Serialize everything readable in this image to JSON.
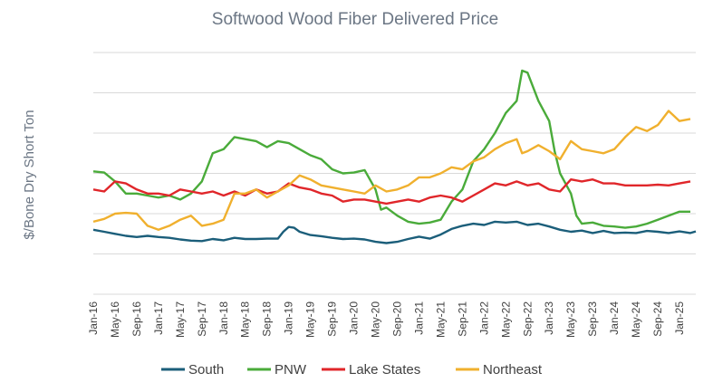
{
  "chart_data": {
    "type": "line",
    "title": "Softwood Wood Fiber Delivered Price",
    "ylabel": "$/Bone Dry Short Ton",
    "xlabel": "",
    "ylim": [
      0,
      6
    ],
    "grid": true,
    "y_tick_labels_shown": false,
    "legend_position": "bottom",
    "x_tick_labels": [
      "Jan-16",
      "May-16",
      "Sep-16",
      "Jan-17",
      "May-17",
      "Sep-17",
      "Jan-18",
      "May-18",
      "Sep-18",
      "Jan-19",
      "May-19",
      "Sep-19",
      "Jan-20",
      "May-20",
      "Sep-20",
      "Jan-21",
      "May-21",
      "Sep-21",
      "Jan-22",
      "May-22",
      "Sep-22",
      "Jan-23",
      "May-23",
      "Sep-23",
      "Jan-24",
      "May-24",
      "Sep-24",
      "Jan-25"
    ],
    "x_start": "2016-01",
    "x_end": "2025-03",
    "series": [
      {
        "name": "South",
        "color": "#1b5e7a",
        "values": [
          [
            0,
            1.6
          ],
          [
            2,
            1.55
          ],
          [
            4,
            1.5
          ],
          [
            6,
            1.45
          ],
          [
            8,
            1.42
          ],
          [
            10,
            1.45
          ],
          [
            12,
            1.42
          ],
          [
            14,
            1.4
          ],
          [
            16,
            1.36
          ],
          [
            18,
            1.33
          ],
          [
            20,
            1.32
          ],
          [
            22,
            1.37
          ],
          [
            24,
            1.34
          ],
          [
            26,
            1.4
          ],
          [
            28,
            1.37
          ],
          [
            30,
            1.37
          ],
          [
            32,
            1.38
          ],
          [
            34,
            1.38
          ],
          [
            35,
            1.55
          ],
          [
            36,
            1.67
          ],
          [
            37,
            1.65
          ],
          [
            38,
            1.55
          ],
          [
            40,
            1.47
          ],
          [
            42,
            1.44
          ],
          [
            44,
            1.4
          ],
          [
            46,
            1.37
          ],
          [
            48,
            1.38
          ],
          [
            50,
            1.36
          ],
          [
            52,
            1.3
          ],
          [
            54,
            1.27
          ],
          [
            56,
            1.3
          ],
          [
            58,
            1.37
          ],
          [
            60,
            1.43
          ],
          [
            62,
            1.38
          ],
          [
            64,
            1.48
          ],
          [
            66,
            1.62
          ],
          [
            68,
            1.7
          ],
          [
            70,
            1.75
          ],
          [
            72,
            1.72
          ],
          [
            74,
            1.8
          ],
          [
            76,
            1.78
          ],
          [
            78,
            1.8
          ],
          [
            80,
            1.72
          ],
          [
            82,
            1.75
          ],
          [
            84,
            1.68
          ],
          [
            86,
            1.6
          ],
          [
            88,
            1.55
          ],
          [
            90,
            1.58
          ],
          [
            92,
            1.52
          ],
          [
            94,
            1.57
          ],
          [
            96,
            1.52
          ],
          [
            98,
            1.53
          ],
          [
            100,
            1.52
          ],
          [
            102,
            1.57
          ],
          [
            104,
            1.55
          ],
          [
            106,
            1.52
          ],
          [
            108,
            1.56
          ],
          [
            110,
            1.52
          ],
          [
            111,
            1.56
          ]
        ]
      },
      {
        "name": "PNW",
        "color": "#4aab3a",
        "values": [
          [
            0,
            3.05
          ],
          [
            2,
            3.02
          ],
          [
            4,
            2.8
          ],
          [
            6,
            2.5
          ],
          [
            8,
            2.5
          ],
          [
            10,
            2.45
          ],
          [
            12,
            2.4
          ],
          [
            14,
            2.45
          ],
          [
            16,
            2.35
          ],
          [
            18,
            2.5
          ],
          [
            20,
            2.8
          ],
          [
            22,
            3.5
          ],
          [
            24,
            3.6
          ],
          [
            26,
            3.9
          ],
          [
            28,
            3.85
          ],
          [
            30,
            3.8
          ],
          [
            32,
            3.65
          ],
          [
            34,
            3.8
          ],
          [
            36,
            3.75
          ],
          [
            38,
            3.6
          ],
          [
            40,
            3.45
          ],
          [
            42,
            3.35
          ],
          [
            44,
            3.1
          ],
          [
            46,
            3.0
          ],
          [
            48,
            3.02
          ],
          [
            50,
            3.08
          ],
          [
            52,
            2.6
          ],
          [
            53,
            2.1
          ],
          [
            54,
            2.15
          ],
          [
            56,
            1.95
          ],
          [
            58,
            1.8
          ],
          [
            60,
            1.75
          ],
          [
            62,
            1.78
          ],
          [
            64,
            1.85
          ],
          [
            66,
            2.3
          ],
          [
            68,
            2.6
          ],
          [
            70,
            3.3
          ],
          [
            72,
            3.6
          ],
          [
            74,
            4.0
          ],
          [
            76,
            4.5
          ],
          [
            78,
            4.8
          ],
          [
            79,
            5.55
          ],
          [
            80,
            5.5
          ],
          [
            82,
            4.8
          ],
          [
            84,
            4.3
          ],
          [
            85,
            3.55
          ],
          [
            86,
            3.0
          ],
          [
            88,
            2.5
          ],
          [
            89,
            1.95
          ],
          [
            90,
            1.75
          ],
          [
            92,
            1.78
          ],
          [
            94,
            1.7
          ],
          [
            96,
            1.68
          ],
          [
            98,
            1.65
          ],
          [
            100,
            1.68
          ],
          [
            102,
            1.75
          ],
          [
            104,
            1.85
          ],
          [
            106,
            1.95
          ],
          [
            108,
            2.05
          ],
          [
            110,
            2.05
          ]
        ]
      },
      {
        "name": "Lake States",
        "color": "#e0262a",
        "values": [
          [
            0,
            2.6
          ],
          [
            2,
            2.55
          ],
          [
            4,
            2.8
          ],
          [
            6,
            2.75
          ],
          [
            8,
            2.6
          ],
          [
            10,
            2.5
          ],
          [
            12,
            2.5
          ],
          [
            14,
            2.45
          ],
          [
            16,
            2.6
          ],
          [
            18,
            2.55
          ],
          [
            20,
            2.5
          ],
          [
            22,
            2.55
          ],
          [
            24,
            2.45
          ],
          [
            26,
            2.55
          ],
          [
            28,
            2.45
          ],
          [
            30,
            2.6
          ],
          [
            32,
            2.5
          ],
          [
            34,
            2.55
          ],
          [
            36,
            2.75
          ],
          [
            38,
            2.65
          ],
          [
            40,
            2.6
          ],
          [
            42,
            2.5
          ],
          [
            44,
            2.45
          ],
          [
            46,
            2.3
          ],
          [
            48,
            2.35
          ],
          [
            50,
            2.35
          ],
          [
            52,
            2.3
          ],
          [
            54,
            2.25
          ],
          [
            56,
            2.3
          ],
          [
            58,
            2.35
          ],
          [
            60,
            2.3
          ],
          [
            62,
            2.4
          ],
          [
            64,
            2.45
          ],
          [
            66,
            2.4
          ],
          [
            68,
            2.3
          ],
          [
            70,
            2.45
          ],
          [
            72,
            2.6
          ],
          [
            74,
            2.75
          ],
          [
            76,
            2.7
          ],
          [
            78,
            2.8
          ],
          [
            80,
            2.7
          ],
          [
            82,
            2.75
          ],
          [
            84,
            2.6
          ],
          [
            86,
            2.55
          ],
          [
            88,
            2.85
          ],
          [
            90,
            2.8
          ],
          [
            92,
            2.85
          ],
          [
            94,
            2.75
          ],
          [
            96,
            2.75
          ],
          [
            98,
            2.7
          ],
          [
            100,
            2.7
          ],
          [
            102,
            2.7
          ],
          [
            104,
            2.72
          ],
          [
            106,
            2.7
          ],
          [
            108,
            2.75
          ],
          [
            110,
            2.8
          ]
        ]
      },
      {
        "name": "Northeast",
        "color": "#f0b02e",
        "values": [
          [
            0,
            1.8
          ],
          [
            2,
            1.87
          ],
          [
            4,
            2.0
          ],
          [
            6,
            2.02
          ],
          [
            8,
            2.0
          ],
          [
            10,
            1.7
          ],
          [
            12,
            1.6
          ],
          [
            14,
            1.7
          ],
          [
            16,
            1.85
          ],
          [
            18,
            1.95
          ],
          [
            20,
            1.7
          ],
          [
            22,
            1.75
          ],
          [
            24,
            1.85
          ],
          [
            26,
            2.5
          ],
          [
            28,
            2.5
          ],
          [
            30,
            2.6
          ],
          [
            32,
            2.4
          ],
          [
            34,
            2.55
          ],
          [
            36,
            2.7
          ],
          [
            38,
            2.95
          ],
          [
            40,
            2.85
          ],
          [
            42,
            2.7
          ],
          [
            44,
            2.65
          ],
          [
            46,
            2.6
          ],
          [
            48,
            2.55
          ],
          [
            50,
            2.5
          ],
          [
            52,
            2.7
          ],
          [
            54,
            2.55
          ],
          [
            56,
            2.6
          ],
          [
            58,
            2.7
          ],
          [
            60,
            2.9
          ],
          [
            62,
            2.9
          ],
          [
            64,
            3.0
          ],
          [
            66,
            3.15
          ],
          [
            68,
            3.1
          ],
          [
            70,
            3.3
          ],
          [
            72,
            3.4
          ],
          [
            74,
            3.6
          ],
          [
            76,
            3.75
          ],
          [
            78,
            3.85
          ],
          [
            79,
            3.5
          ],
          [
            80,
            3.55
          ],
          [
            82,
            3.7
          ],
          [
            84,
            3.55
          ],
          [
            86,
            3.35
          ],
          [
            88,
            3.8
          ],
          [
            90,
            3.6
          ],
          [
            92,
            3.55
          ],
          [
            94,
            3.5
          ],
          [
            96,
            3.6
          ],
          [
            98,
            3.9
          ],
          [
            100,
            4.15
          ],
          [
            102,
            4.05
          ],
          [
            104,
            4.2
          ],
          [
            106,
            4.55
          ],
          [
            108,
            4.3
          ],
          [
            110,
            4.35
          ]
        ]
      }
    ]
  }
}
